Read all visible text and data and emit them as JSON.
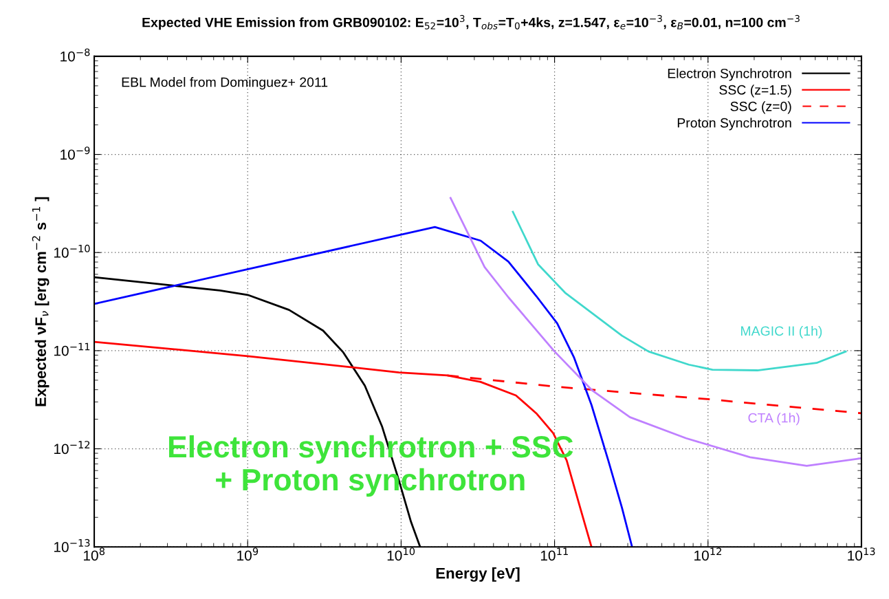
{
  "chart_data": {
    "type": "line",
    "title": "Expected VHE Emission from GRB090102: E$_{52}$=10$^{3}$, T$_{obs}$=T$_{0}$+4ks, z=1.547, ε$_{e}$=10$^{−3}$, ε$_{B}$=0.01, n=100 cm$^{−3}$",
    "xlabel": "Energy [eV]",
    "ylabel": "Expected νF$_{ν}$ [erg cm$^{−2}$ s$^{−1}$ ]",
    "log": "xy",
    "grid": true,
    "legend": "top right",
    "line_style": "solid",
    "marker": "none",
    "xlim": [
      100000000.0,
      10000000000000.0
    ],
    "ylim": [
      1e-13,
      1e-08
    ],
    "xticks": [
      {
        "value": 100000000.0,
        "label": "10$^{8}$"
      },
      {
        "value": 1000000000.0,
        "label": "10$^{9}$"
      },
      {
        "value": 10000000000.0,
        "label": "10$^{10}$"
      },
      {
        "value": 100000000000.0,
        "label": "10$^{11}$"
      },
      {
        "value": 1000000000000.0,
        "label": "10$^{12}$"
      },
      {
        "value": 10000000000000.0,
        "label": "10$^{13}$"
      }
    ],
    "yticks": [
      {
        "value": 1e-13,
        "label": "10$^{−13}$"
      },
      {
        "value": 1e-12,
        "label": "10$^{−12}$"
      },
      {
        "value": 1e-11,
        "label": "10$^{−11}$"
      },
      {
        "value": 1e-10,
        "label": "10$^{−10}$"
      },
      {
        "value": 1e-09,
        "label": "10$^{−9}$"
      },
      {
        "value": 1e-08,
        "label": "10$^{−8}$"
      }
    ],
    "series": [
      {
        "name": "Electron Synchrotron",
        "color": "#000000",
        "x": [
          100000000.0,
          660000000.0,
          1000000000.0,
          1860000000.0,
          3100000000.0,
          4200000000.0,
          5800000000.0,
          7500000000.0,
          9700000000.0,
          11600000000.0,
          13300000000.0
        ],
        "values": [
          5.6e-11,
          4.1e-11,
          3.7e-11,
          2.6e-11,
          1.6e-11,
          9.6e-12,
          4.4e-12,
          1.7e-12,
          4.7e-13,
          1.8e-13,
          1e-13
        ]
      },
      {
        "name": "SSC (z=1.5)",
        "color": "#ff0000",
        "x": [
          100000000.0,
          1000000000.0,
          9700000000.0,
          20000000000.0,
          33000000000.0,
          56000000000.0,
          76000000000.0,
          98000000000.0,
          120000000000.0,
          148000000000.0,
          174000000000.0
        ],
        "values": [
          1.23e-11,
          8.8e-12,
          6e-12,
          5.6e-12,
          4.8e-12,
          3.5e-12,
          2.3e-12,
          1.44e-12,
          7.6e-13,
          2.4e-13,
          1e-13
        ]
      },
      {
        "name": "SSC (z=0)",
        "color": "#ff0000",
        "line_style": "dashed",
        "x": [
          20000000000.0,
          100000000000.0,
          1000000000000.0,
          10000000000000.0
        ],
        "values": [
          5.6e-12,
          4.3e-12,
          3.2e-12,
          2.3e-12
        ]
      },
      {
        "name": "Proton Synchrotron",
        "color": "#0000ff",
        "x": [
          100000000.0,
          16600000000.0,
          33000000000.0,
          50000000000.0,
          76000000000.0,
          104000000000.0,
          134000000000.0,
          174000000000.0,
          224000000000.0,
          275000000000.0,
          320000000000.0
        ],
        "values": [
          3e-11,
          1.82e-10,
          1.32e-10,
          8.1e-11,
          3.6e-11,
          1.9e-11,
          8.5e-12,
          2.8e-12,
          7.6e-13,
          2.5e-13,
          1e-13
        ]
      },
      {
        "name": "MAGIC II (1h)",
        "color": "#40d8cc",
        "x": [
          53500000000.0,
          78000000000.0,
          117000000000.0,
          275000000000.0,
          410000000000.0,
          750000000000.0,
          1070000000000.0,
          2100000000000.0,
          5100000000000.0,
          7900000000000.0
        ],
        "values": [
          2.6e-10,
          7.6e-11,
          3.9e-11,
          1.42e-11,
          9.8e-12,
          7.2e-12,
          6.4e-12,
          6.3e-12,
          7.5e-12,
          9.8e-12
        ]
      },
      {
        "name": "CTA (1h)",
        "color": "#bf80ff",
        "x": [
          21000000000.0,
          35000000000.0,
          50000000000.0,
          100000000000.0,
          177000000000.0,
          310000000000.0,
          720000000000.0,
          1880000000000.0,
          4400000000000.0,
          10000000000000.0
        ],
        "values": [
          3.6e-10,
          7.1e-11,
          3.5e-11,
          9.8e-12,
          3.9e-12,
          2.1e-12,
          1.28e-12,
          8.2e-13,
          6.7e-13,
          8e-13
        ]
      }
    ],
    "annotations": [
      "EBL Model from Dominguez+ 2011",
      "Electron synchrotron + SSC\n+ Proton synchrotron"
    ]
  }
}
